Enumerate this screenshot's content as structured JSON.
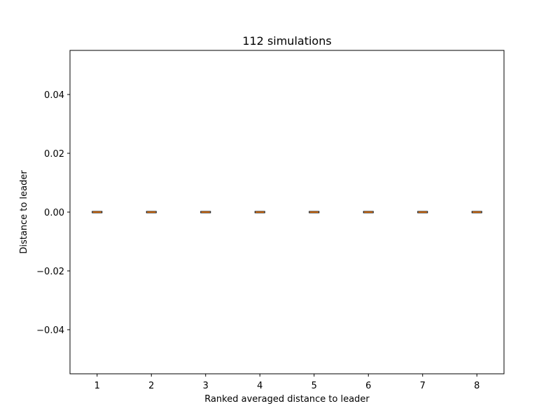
{
  "chart_data": {
    "type": "box",
    "title": "112 simulations",
    "xlabel": "Ranked averaged distance to leader",
    "ylabel": "Distance to leader",
    "categories": [
      "1",
      "2",
      "3",
      "4",
      "5",
      "6",
      "7",
      "8"
    ],
    "boxes": [
      {
        "category": "1",
        "min": 0.0,
        "q1": 0.0,
        "median": 0.0,
        "q3": 0.0,
        "max": 0.0
      },
      {
        "category": "2",
        "min": 0.0,
        "q1": 0.0,
        "median": 0.0,
        "q3": 0.0,
        "max": 0.0
      },
      {
        "category": "3",
        "min": 0.0,
        "q1": 0.0,
        "median": 0.0,
        "q3": 0.0,
        "max": 0.0
      },
      {
        "category": "4",
        "min": 0.0,
        "q1": 0.0,
        "median": 0.0,
        "q3": 0.0,
        "max": 0.0
      },
      {
        "category": "5",
        "min": 0.0,
        "q1": 0.0,
        "median": 0.0,
        "q3": 0.0,
        "max": 0.0
      },
      {
        "category": "6",
        "min": 0.0,
        "q1": 0.0,
        "median": 0.0,
        "q3": 0.0,
        "max": 0.0
      },
      {
        "category": "7",
        "min": 0.0,
        "q1": 0.0,
        "median": 0.0,
        "q3": 0.0,
        "max": 0.0
      },
      {
        "category": "8",
        "min": 0.0,
        "q1": 0.0,
        "median": 0.0,
        "q3": 0.0,
        "max": 0.0
      }
    ],
    "yticks": [
      -0.04,
      -0.02,
      0.0,
      0.02,
      0.04
    ],
    "ytick_labels": [
      "−0.04",
      "−0.02",
      "0.00",
      "0.02",
      "0.04"
    ],
    "ylim": [
      -0.055,
      0.055
    ],
    "xlim": [
      0.5,
      8.5
    ],
    "grid": false,
    "colors": {
      "box_edge": "#000000",
      "median": "#ff7f0e",
      "axes": "#000000",
      "background": "#ffffff"
    }
  }
}
